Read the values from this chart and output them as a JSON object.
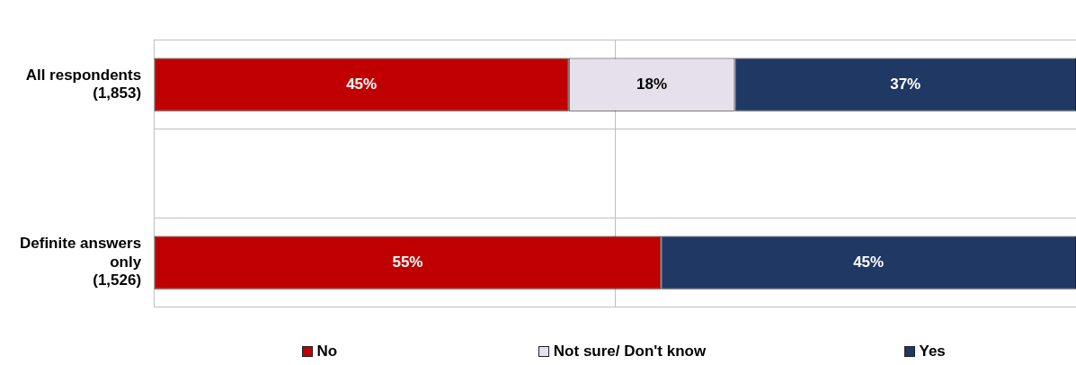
{
  "chart_data": {
    "type": "bar",
    "orientation": "horizontal",
    "stacked": true,
    "categories": [
      "All respondents (1,853)",
      null,
      "Definite answers only (1,526)"
    ],
    "series": [
      {
        "name": "No",
        "color": "#c00000",
        "values": [
          45,
          null,
          55
        ],
        "value_labels": [
          "45%",
          null,
          "55%"
        ]
      },
      {
        "name": "Not sure/ Don't know",
        "color": "#e6e0ec",
        "values": [
          18,
          null,
          null
        ],
        "value_labels": [
          "18%",
          null,
          null
        ]
      },
      {
        "name": "Yes",
        "color": "#1f3864",
        "values": [
          37,
          null,
          45
        ],
        "value_labels": [
          "37%",
          null,
          "45%"
        ]
      }
    ],
    "tick_labels": "y",
    "grid": true,
    "legend": "bottom"
  }
}
